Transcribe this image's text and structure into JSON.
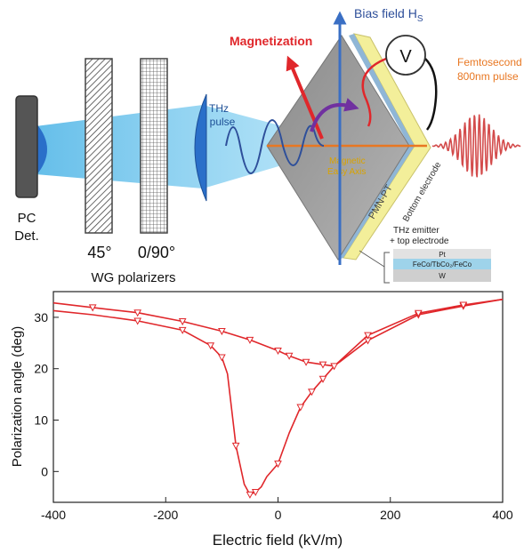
{
  "diagram": {
    "pc_det": [
      "PC",
      "Det."
    ],
    "pol_45": "45°",
    "pol_090": "0/90°",
    "wg_polarizers": "WG polarizers",
    "thz_pulse": [
      "THz",
      "pulse"
    ],
    "magnetization": "Magnetization",
    "bias_field": "Bias field H",
    "bias_sub": "S",
    "voltmeter": "V",
    "femto": [
      "Femtosecond",
      "800nm pulse"
    ],
    "easy_axis": [
      "Magnetic",
      "Easy Axis"
    ],
    "pmn_pt": "PMN-PT",
    "bottom_electrode": "Bottom electrode",
    "thz_emitter": [
      "THz emitter",
      "+ top electrode"
    ],
    "layers": [
      "Pt",
      "FeCo/TbCo₂/FeCo",
      "W"
    ],
    "colors": {
      "beam": "#5bc0eb",
      "red": "#e0272b",
      "arrow_blue": "#3a6fc4",
      "purple": "#7030a0",
      "yellow": "#f3ef9a",
      "orange": "#e87722"
    }
  },
  "chart_data": {
    "type": "line",
    "xlabel": "Electric field (kV/m)",
    "ylabel": "Polarization angle (deg)",
    "xlim": [
      -400,
      400
    ],
    "ylim": [
      -6,
      35
    ],
    "xticks": [
      -400,
      -200,
      0,
      200,
      400
    ],
    "yticks": [
      0,
      10,
      20,
      30
    ],
    "color": "#e0272b",
    "series": [
      {
        "branch": "upper",
        "x": [
          -400,
          -330,
          -250,
          -170,
          -100,
          -50,
          0,
          20,
          50,
          80,
          100,
          160,
          250,
          330,
          400
        ],
        "y": [
          32.8,
          31.9,
          30.9,
          29.2,
          27.3,
          25.6,
          23.5,
          22.5,
          21.3,
          20.8,
          20.5,
          25.5,
          30.5,
          32.2,
          33.5
        ],
        "markers": [
          -330,
          -250,
          -170,
          -100,
          -50,
          0,
          20,
          50,
          80,
          100,
          160,
          250,
          330
        ]
      },
      {
        "branch": "lower",
        "x": [
          -400,
          -330,
          -250,
          -170,
          -120,
          -100,
          -90,
          -75,
          -60,
          -50,
          -40,
          -30,
          -20,
          0,
          20,
          40,
          60,
          80,
          100,
          160,
          250,
          330,
          400
        ],
        "y": [
          31.3,
          30.5,
          29.3,
          27.5,
          24.5,
          22.2,
          19,
          5,
          -2.5,
          -4.5,
          -4,
          -3,
          -1,
          1.5,
          7.5,
          12.5,
          15.5,
          18,
          20.5,
          26.5,
          30.8,
          32.4,
          33.5
        ],
        "markers": [
          -250,
          -170,
          -120,
          -100,
          -75,
          -50,
          -40,
          0,
          40,
          60,
          80,
          160,
          250,
          330
        ]
      }
    ]
  }
}
